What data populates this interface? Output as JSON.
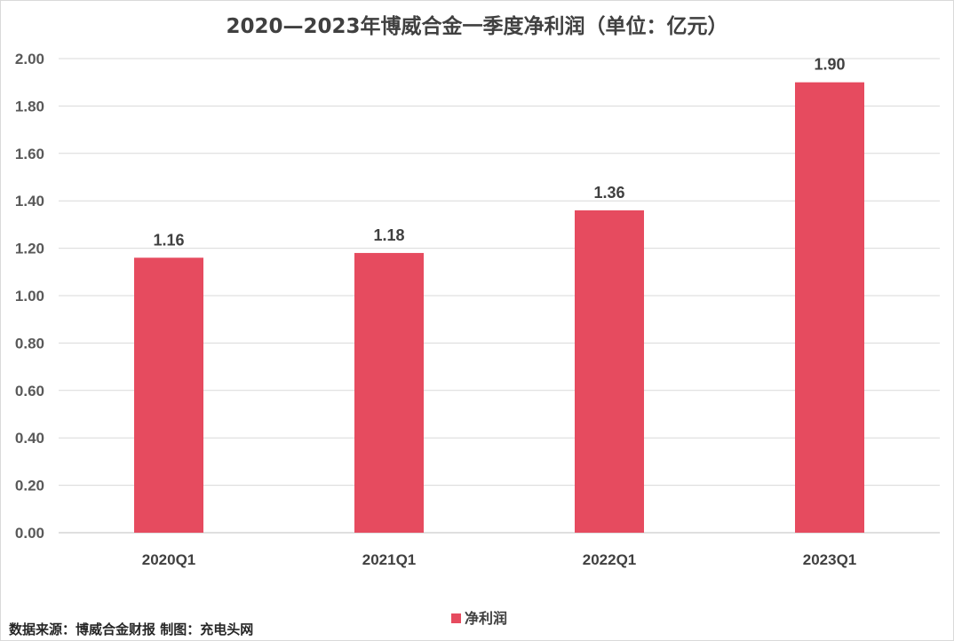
{
  "chart_data": {
    "type": "bar",
    "title": "2020—2023年博威合金一季度净利润（单位：亿元）",
    "categories": [
      "2020Q1",
      "2021Q1",
      "2022Q1",
      "2023Q1"
    ],
    "series": [
      {
        "name": "净利润",
        "values": [
          1.16,
          1.18,
          1.36,
          1.9
        ],
        "color": "#e64b5f"
      }
    ],
    "data_labels": [
      "1.16",
      "1.18",
      "1.36",
      "1.90"
    ],
    "y_ticks": [
      "0.00",
      "0.20",
      "0.40",
      "0.60",
      "0.80",
      "1.00",
      "1.20",
      "1.40",
      "1.60",
      "1.80",
      "2.00"
    ],
    "ylim": [
      0,
      2.0
    ],
    "grid": true,
    "legend_position": "bottom"
  },
  "footer": {
    "source": "数据来源：博威合金财报  制图：充电头网"
  }
}
